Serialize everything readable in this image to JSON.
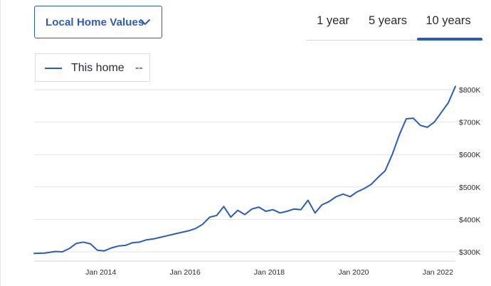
{
  "dropdown": {
    "label": "Local Home Values",
    "icon": "chevron-down-icon"
  },
  "tabs": [
    {
      "label": "1 year",
      "selected": false
    },
    {
      "label": "5 years",
      "selected": false
    },
    {
      "label": "10 years",
      "selected": true
    }
  ],
  "legend": {
    "series_name": "This home",
    "value": "--"
  },
  "colors": {
    "accent": "#2a5bbf",
    "grid": "#e2e2e6"
  },
  "chart_data": {
    "type": "line",
    "title": "",
    "xlabel": "",
    "ylabel": "",
    "x_ticks": [
      "Jan 2014",
      "Jan 2016",
      "Jan 2018",
      "Jan 2020",
      "Jan 2022"
    ],
    "y_ticks": [
      "$300K",
      "$400K",
      "$500K",
      "$600K",
      "$700K",
      "$800K"
    ],
    "y_tick_values": [
      300000,
      400000,
      500000,
      600000,
      700000,
      800000
    ],
    "xlim": [
      "2012-06",
      "2022-06"
    ],
    "ylim": [
      285000,
      825000
    ],
    "grid": true,
    "legend_position": "top-left",
    "series": [
      {
        "name": "This home",
        "x": [
          "2012-06",
          "2012-09",
          "2012-12",
          "2013-02",
          "2013-04",
          "2013-06",
          "2013-08",
          "2013-10",
          "2013-12",
          "2014-02",
          "2014-04",
          "2014-06",
          "2014-08",
          "2014-10",
          "2014-12",
          "2015-02",
          "2015-04",
          "2015-06",
          "2015-08",
          "2015-10",
          "2015-12",
          "2016-02",
          "2016-04",
          "2016-06",
          "2016-08",
          "2016-10",
          "2016-12",
          "2017-02",
          "2017-04",
          "2017-06",
          "2017-08",
          "2017-10",
          "2017-12",
          "2018-02",
          "2018-04",
          "2018-06",
          "2018-08",
          "2018-10",
          "2018-12",
          "2019-02",
          "2019-04",
          "2019-06",
          "2019-08",
          "2019-10",
          "2019-12",
          "2020-02",
          "2020-04",
          "2020-06",
          "2020-08",
          "2020-10",
          "2020-12",
          "2021-02",
          "2021-04",
          "2021-06",
          "2021-08",
          "2021-10",
          "2021-12",
          "2022-02",
          "2022-04",
          "2022-06"
        ],
        "values": [
          295000,
          296000,
          301000,
          300000,
          310000,
          326000,
          330000,
          325000,
          305000,
          303000,
          312000,
          318000,
          320000,
          328000,
          330000,
          337000,
          340000,
          345000,
          350000,
          355000,
          360000,
          365000,
          372000,
          385000,
          407000,
          412000,
          440000,
          407000,
          428000,
          415000,
          432000,
          438000,
          425000,
          430000,
          420000,
          425000,
          432000,
          430000,
          459000,
          420000,
          445000,
          455000,
          470000,
          478000,
          470000,
          485000,
          495000,
          508000,
          530000,
          550000,
          600000,
          660000,
          710000,
          712000,
          690000,
          684000,
          700000,
          730000,
          760000,
          810000
        ]
      }
    ]
  }
}
